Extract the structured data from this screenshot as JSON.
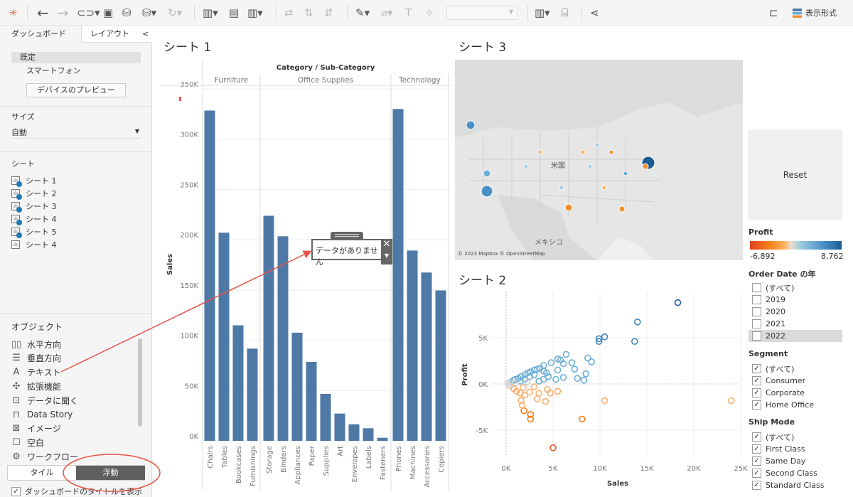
{
  "toolbar": {
    "display_format": "表示形式"
  },
  "left_panel": {
    "tabs": [
      "ダッシュボード",
      "レイアウト"
    ],
    "collapse": "<",
    "devices": [
      "既定",
      "スマートフォン"
    ],
    "device_preview": "デバイスのプレビュー",
    "size_label": "サイズ",
    "size_value": "自動",
    "sheets_label": "シート",
    "sheets": [
      "シート 1",
      "シート 2",
      "シート 3",
      "シート 4",
      "シート 5",
      "シート 4"
    ],
    "objects_label": "オブジェクト",
    "objects": [
      "水平方向",
      "垂直方向",
      "テキスト",
      "拡張機能",
      "データに聞く",
      "Data Story",
      "イメージ",
      "空白",
      "ワークフロー"
    ],
    "tile": "タイル",
    "floating": "浮動",
    "show_title": "ダッシュボードのタイトルを表示"
  },
  "sheet1": {
    "title": "シート 1"
  },
  "sheet2": {
    "title": "シート 2"
  },
  "sheet3": {
    "title": "シート 3",
    "map_labels": [
      "米国",
      "メキシコ"
    ],
    "attribution": "© 2023 Mapbox © OpenStreetMap"
  },
  "text_object": {
    "text": "データがありません"
  },
  "reset": "Reset",
  "legend": {
    "title": "Profit",
    "min": "-6,892",
    "max": "8,762"
  },
  "filters": [
    {
      "title": "Order Date の年",
      "items": [
        {
          "label": "(すべて)",
          "checked": false
        },
        {
          "label": "2019",
          "checked": false
        },
        {
          "label": "2020",
          "checked": false
        },
        {
          "label": "2021",
          "checked": false
        },
        {
          "label": "2022",
          "checked": false
        }
      ]
    },
    {
      "title": "Segment",
      "items": [
        {
          "label": "(すべて)",
          "checked": true
        },
        {
          "label": "Consumer",
          "checked": true
        },
        {
          "label": "Corporate",
          "checked": true
        },
        {
          "label": "Home Office",
          "checked": true
        }
      ]
    },
    {
      "title": "Ship Mode",
      "items": [
        {
          "label": "(すべて)",
          "checked": true
        },
        {
          "label": "First Class",
          "checked": true
        },
        {
          "label": "Same Day",
          "checked": true
        },
        {
          "label": "Second Class",
          "checked": true
        },
        {
          "label": "Standard Class",
          "checked": true
        }
      ]
    }
  ],
  "chart_data": [
    {
      "type": "bar",
      "title": "Category / Sub-Category",
      "ylabel": "Sales",
      "ylim": [
        0,
        350000
      ],
      "yticks": [
        "0K",
        "50K",
        "100K",
        "150K",
        "200K",
        "250K",
        "300K",
        "350K"
      ],
      "groups": [
        {
          "name": "Furniture",
          "categories": [
            "Chairs",
            "Tables",
            "Bookcases",
            "Furnishings"
          ],
          "values": [
            328449,
            206966,
            114880,
            91705
          ]
        },
        {
          "name": "Office Supplies",
          "categories": [
            "Storage",
            "Binders",
            "Appliances",
            "Paper",
            "Supplies",
            "Art",
            "Envelopes",
            "Labels",
            "Fasteners"
          ],
          "values": [
            223844,
            203413,
            107532,
            78479,
            46674,
            27119,
            16476,
            12486,
            3024
          ]
        },
        {
          "name": "Technology",
          "categories": [
            "Phones",
            "Machines",
            "Accessories",
            "Copiers"
          ],
          "values": [
            330007,
            189239,
            167380,
            149528
          ]
        }
      ],
      "color": "#4e79a7"
    },
    {
      "type": "scatter",
      "xlabel": "Sales",
      "ylabel": "Profit",
      "xlim": [
        -1.5,
        25
      ],
      "ylim": [
        -8,
        9.5
      ],
      "xticks": [
        "0K",
        "5K",
        "10K",
        "15K",
        "20K",
        "25K"
      ],
      "yticks": [
        "-5K",
        "0K",
        "5K"
      ],
      "points": [
        [
          18.3,
          8.8
        ],
        [
          14,
          6.7
        ],
        [
          13.7,
          4.6
        ],
        [
          10.5,
          5.1
        ],
        [
          9.9,
          4.9
        ],
        [
          9.9,
          4.6
        ],
        [
          6.4,
          3.2
        ],
        [
          8.7,
          2.8
        ],
        [
          9.1,
          2.4
        ],
        [
          7,
          2.3
        ],
        [
          7.3,
          1.6
        ],
        [
          5.5,
          2.7
        ],
        [
          5.8,
          2.6
        ],
        [
          6.1,
          2.2
        ],
        [
          4.8,
          2.3
        ],
        [
          4,
          2
        ],
        [
          5.5,
          1.5
        ],
        [
          8.5,
          1.1
        ],
        [
          6.1,
          0.7
        ],
        [
          7.6,
          0.6
        ],
        [
          8.3,
          0.4
        ],
        [
          5.3,
          0.5
        ],
        [
          24,
          -1.8
        ],
        [
          10.5,
          -1.8
        ],
        [
          8.1,
          -3.8
        ],
        [
          5,
          -6.9
        ],
        [
          2.6,
          -3.3
        ],
        [
          2.6,
          -3.8
        ],
        [
          1.9,
          -2.9
        ],
        [
          1.7,
          -2.3
        ],
        [
          1.6,
          -1.8
        ],
        [
          4.2,
          -1.9
        ],
        [
          3.3,
          -1.6
        ],
        [
          5.5,
          -0.8
        ],
        [
          4.7,
          -1.0
        ],
        [
          3.5,
          -1
        ],
        [
          4.4,
          -0.6
        ],
        [
          0.2,
          0.1
        ],
        [
          0.5,
          0.2
        ],
        [
          0.8,
          0.4
        ],
        [
          1,
          0.5
        ],
        [
          1.3,
          0.6
        ],
        [
          1.6,
          0.8
        ],
        [
          2,
          1
        ],
        [
          2.3,
          1.2
        ],
        [
          2.6,
          1.3
        ],
        [
          3,
          1.5
        ],
        [
          3.3,
          1.6
        ],
        [
          3.6,
          1.7
        ],
        [
          4,
          1.4
        ],
        [
          4.3,
          1.2
        ],
        [
          3,
          1
        ],
        [
          2.5,
          0.8
        ],
        [
          2,
          0.5
        ],
        [
          1.5,
          0.3
        ],
        [
          1,
          0.1
        ],
        [
          0.5,
          -0.2
        ],
        [
          0.8,
          -0.5
        ],
        [
          1.1,
          -0.8
        ],
        [
          1.5,
          -1
        ],
        [
          2,
          -1.2
        ],
        [
          2.5,
          -0.9
        ],
        [
          1.8,
          -0.4
        ],
        [
          3,
          -0.3
        ],
        [
          3.5,
          0.3
        ],
        [
          4,
          0.5
        ],
        [
          4.5,
          0.8
        ],
        [
          2.2,
          0.2
        ],
        [
          0.3,
          -0.1
        ]
      ]
    }
  ],
  "colors": {
    "bar": "#4e79a7",
    "accent_red": "#e8534a",
    "neg": "#f28e2b",
    "neg_strong": "#e15a1f",
    "pos": "#6baed6",
    "pos_strong": "#1f5f9e",
    "neutral": "#cfcfcf"
  }
}
